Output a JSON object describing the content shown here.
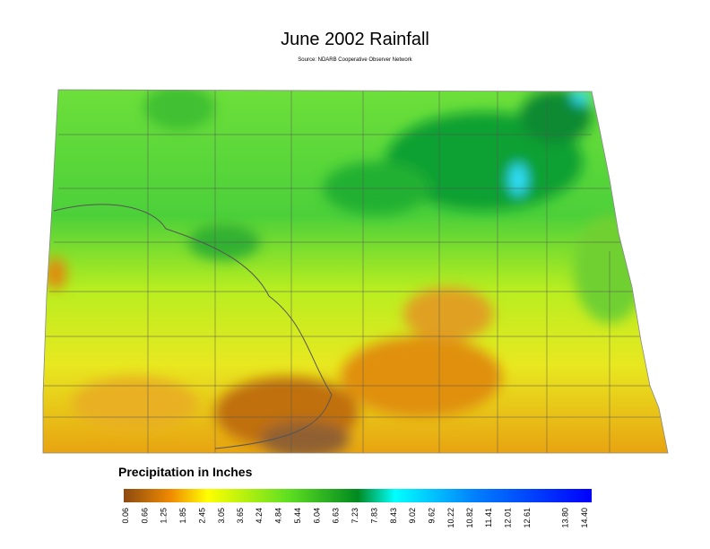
{
  "header": {
    "title": "June 2002 Rainfall",
    "source": "Source: NDARB Cooperative Observer Network"
  },
  "legend": {
    "title": "Precipitation in Inches",
    "ticks": [
      0.06,
      0.66,
      1.25,
      1.85,
      2.45,
      3.05,
      3.65,
      4.24,
      4.84,
      5.44,
      6.04,
      6.63,
      7.23,
      7.83,
      8.43,
      9.02,
      9.62,
      10.22,
      10.82,
      11.41,
      12.01,
      12.61,
      {
        "value": 13.8,
        "label": "13.80"
      },
      {
        "value": 14.4,
        "label": "14.40"
      }
    ]
  }
}
